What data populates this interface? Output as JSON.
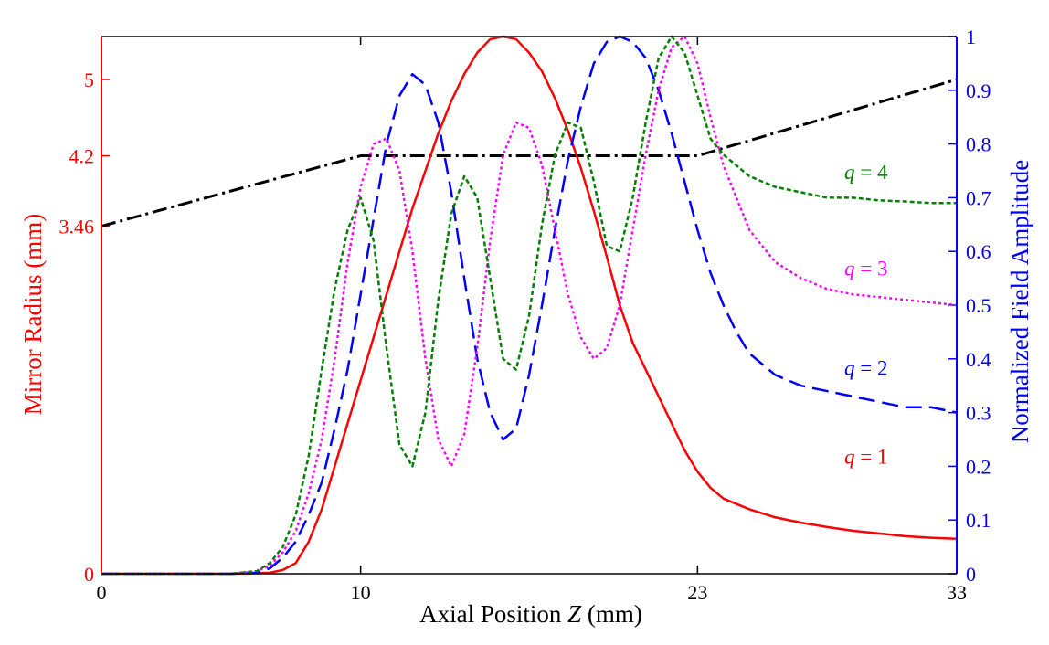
{
  "chart_data": {
    "type": "line",
    "xlabel_prefix": "Axial Position ",
    "xlabel_var": "Z",
    "xlabel_suffix": " (mm)",
    "ylabel_left": "Mirror Radius (mm)",
    "ylabel_right": "Normalized Field Amplitude",
    "xlim": [
      0,
      33
    ],
    "x_ticks": [
      0,
      10,
      23,
      33
    ],
    "x_tick_labels": [
      "0",
      "10",
      "23",
      "33"
    ],
    "left_ticks": [
      0,
      3.46,
      4.2,
      5
    ],
    "left_tick_labels": [
      "0",
      "3.46",
      "4.2",
      "5"
    ],
    "left_ticks_norm": [
      0,
      0.647,
      0.778,
      0.92
    ],
    "right_ticks": [
      0,
      0.1,
      0.2,
      0.3,
      0.4,
      0.5,
      0.6,
      0.7,
      0.8,
      0.9,
      1
    ],
    "right_tick_labels": [
      "0",
      "0.1",
      "0.2",
      "0.3",
      "0.4",
      "0.5",
      "0.6",
      "0.7",
      "0.8",
      "0.9",
      "1"
    ],
    "ylim_right": [
      0,
      1
    ],
    "colors": {
      "left_axis": "#ff0000",
      "right_axis": "#0000ff",
      "frame": "#000000"
    },
    "series": [
      {
        "name": "Mirror Radius",
        "axis": "left",
        "color": "#000000",
        "dash": "16,5,3,5",
        "width": 3,
        "x": [
          0,
          10,
          23,
          33
        ],
        "y": [
          0.647,
          0.778,
          0.778,
          0.92
        ]
      },
      {
        "name": "q = 1",
        "label_q": "q",
        "label_eq": " = 1",
        "label_at": [
          29.5,
          0.205
        ],
        "axis": "right",
        "color": "#ff0000",
        "dash": "",
        "width": 2.5,
        "x": [
          0,
          5,
          6.5,
          7,
          7.5,
          8,
          8.5,
          9,
          9.5,
          10,
          10.5,
          11,
          11.5,
          12,
          12.5,
          13,
          13.5,
          14,
          14.5,
          15,
          15.5,
          16,
          16.5,
          17,
          17.5,
          18,
          18.5,
          19,
          19.5,
          20,
          20.5,
          21,
          21.5,
          22,
          22.5,
          23,
          23.5,
          24,
          25,
          26,
          27,
          28,
          29,
          30,
          31,
          32,
          33
        ],
        "y": [
          0,
          0,
          0.002,
          0.007,
          0.02,
          0.06,
          0.12,
          0.2,
          0.28,
          0.36,
          0.44,
          0.52,
          0.6,
          0.68,
          0.75,
          0.82,
          0.88,
          0.93,
          0.97,
          0.995,
          1.0,
          0.995,
          0.97,
          0.935,
          0.885,
          0.825,
          0.755,
          0.675,
          0.59,
          0.5,
          0.43,
          0.38,
          0.33,
          0.28,
          0.23,
          0.19,
          0.16,
          0.14,
          0.12,
          0.105,
          0.095,
          0.087,
          0.08,
          0.075,
          0.07,
          0.067,
          0.065
        ]
      },
      {
        "name": "q = 2",
        "label_q": "q",
        "label_eq": " = 2",
        "label_at": [
          29.5,
          0.37
        ],
        "axis": "right",
        "color": "#0000ff",
        "dash": "18,8",
        "width": 2.5,
        "x": [
          0,
          5,
          6,
          6.5,
          7,
          7.5,
          8,
          8.5,
          9,
          9.5,
          10,
          10.5,
          11,
          11.5,
          12,
          12.5,
          13,
          13.5,
          14,
          14.5,
          15,
          15.5,
          16,
          16.5,
          17,
          17.5,
          18,
          18.5,
          19,
          19.5,
          20,
          20.5,
          21,
          21.5,
          22,
          22.5,
          23,
          23.5,
          24,
          24.5,
          25,
          26,
          27,
          28,
          29,
          30,
          31,
          32,
          33
        ],
        "y": [
          0,
          0,
          0.002,
          0.01,
          0.03,
          0.06,
          0.11,
          0.17,
          0.27,
          0.38,
          0.52,
          0.66,
          0.8,
          0.89,
          0.93,
          0.91,
          0.84,
          0.71,
          0.55,
          0.4,
          0.3,
          0.25,
          0.27,
          0.37,
          0.5,
          0.64,
          0.77,
          0.87,
          0.95,
          0.99,
          1.0,
          0.99,
          0.96,
          0.9,
          0.82,
          0.73,
          0.64,
          0.56,
          0.5,
          0.45,
          0.41,
          0.37,
          0.35,
          0.34,
          0.33,
          0.32,
          0.31,
          0.31,
          0.3
        ]
      },
      {
        "name": "q = 3",
        "label_q": "q",
        "label_eq": " = 3",
        "label_at": [
          29.5,
          0.555
        ],
        "axis": "right",
        "color": "#ff00ff",
        "dash": "3,3",
        "width": 2.5,
        "x": [
          0,
          5,
          6,
          6.5,
          7,
          7.5,
          8,
          8.5,
          9,
          9.5,
          10,
          10.5,
          11,
          11.5,
          12,
          12.5,
          13,
          13.5,
          14,
          14.5,
          15,
          15.5,
          16,
          16.5,
          17,
          17.5,
          18,
          18.5,
          19,
          19.5,
          20,
          20.5,
          21,
          21.5,
          22,
          22.5,
          23,
          23.5,
          24,
          24.5,
          25,
          26,
          27,
          28,
          29,
          30,
          31,
          32,
          33
        ],
        "y": [
          0,
          0,
          0.005,
          0.015,
          0.04,
          0.08,
          0.15,
          0.25,
          0.4,
          0.58,
          0.72,
          0.8,
          0.81,
          0.75,
          0.6,
          0.4,
          0.25,
          0.2,
          0.26,
          0.42,
          0.62,
          0.78,
          0.84,
          0.83,
          0.76,
          0.64,
          0.52,
          0.44,
          0.4,
          0.42,
          0.5,
          0.64,
          0.78,
          0.9,
          0.98,
          1.0,
          0.95,
          0.85,
          0.76,
          0.7,
          0.64,
          0.58,
          0.55,
          0.53,
          0.52,
          0.515,
          0.51,
          0.505,
          0.5
        ]
      },
      {
        "name": "q = 4",
        "label_q": "q",
        "label_eq": " = 4",
        "label_at": [
          29.5,
          0.735
        ],
        "axis": "right",
        "color": "#007f00",
        "dash": "5,3",
        "width": 2.5,
        "x": [
          0,
          5,
          6,
          6.5,
          7,
          7.5,
          8,
          8.5,
          9,
          9.5,
          10,
          10.5,
          11,
          11.5,
          12,
          12.5,
          13,
          13.5,
          14,
          14.5,
          15,
          15.5,
          16,
          16.5,
          17,
          17.5,
          18,
          18.5,
          19,
          19.5,
          20,
          20.5,
          21,
          21.5,
          22,
          22.5,
          23,
          23.5,
          24,
          25,
          26,
          27,
          28,
          29,
          30,
          31,
          32,
          33
        ],
        "y": [
          0,
          0,
          0.005,
          0.02,
          0.05,
          0.11,
          0.22,
          0.38,
          0.53,
          0.64,
          0.7,
          0.62,
          0.42,
          0.24,
          0.2,
          0.3,
          0.51,
          0.67,
          0.74,
          0.7,
          0.55,
          0.4,
          0.38,
          0.48,
          0.65,
          0.78,
          0.84,
          0.83,
          0.73,
          0.61,
          0.6,
          0.7,
          0.84,
          0.96,
          1.0,
          0.97,
          0.89,
          0.81,
          0.78,
          0.74,
          0.72,
          0.71,
          0.7,
          0.7,
          0.695,
          0.693,
          0.69,
          0.69
        ]
      }
    ]
  }
}
